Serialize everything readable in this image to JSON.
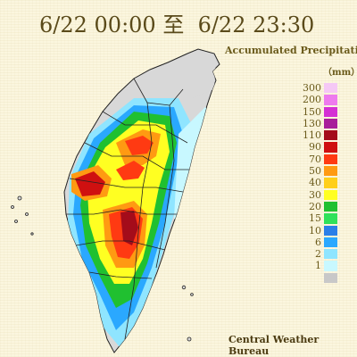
{
  "header": {
    "title": "6/22 00:00 至  6/22 23:30"
  },
  "legend": {
    "title": "Accumulated Precipitation",
    "unit": "（mm）",
    "levels": [
      {
        "label": "300",
        "color": "#f5c8f5"
      },
      {
        "label": "200",
        "color": "#ee7aee"
      },
      {
        "label": "150",
        "color": "#d42fd4"
      },
      {
        "label": "130",
        "color": "#a81d9a"
      },
      {
        "label": "110",
        "color": "#a40c1a"
      },
      {
        "label": "90",
        "color": "#cf1010"
      },
      {
        "label": "70",
        "color": "#ff3a12"
      },
      {
        "label": "50",
        "color": "#ff9a12"
      },
      {
        "label": "40",
        "color": "#ffcf1a"
      },
      {
        "label": "30",
        "color": "#ffff22"
      },
      {
        "label": "20",
        "color": "#20c030"
      },
      {
        "label": "15",
        "color": "#2fe15a"
      },
      {
        "label": "10",
        "color": "#2a7fe8"
      },
      {
        "label": "6",
        "color": "#2aa8ff"
      },
      {
        "label": "2",
        "color": "#8fe5ff"
      },
      {
        "label": "1",
        "color": "#c8f8ff"
      },
      {
        "label": "",
        "color": "#c8c8c8"
      }
    ]
  },
  "footer": {
    "source": "Central Weather Bureau"
  },
  "map": {
    "region": "Taiwan"
  }
}
